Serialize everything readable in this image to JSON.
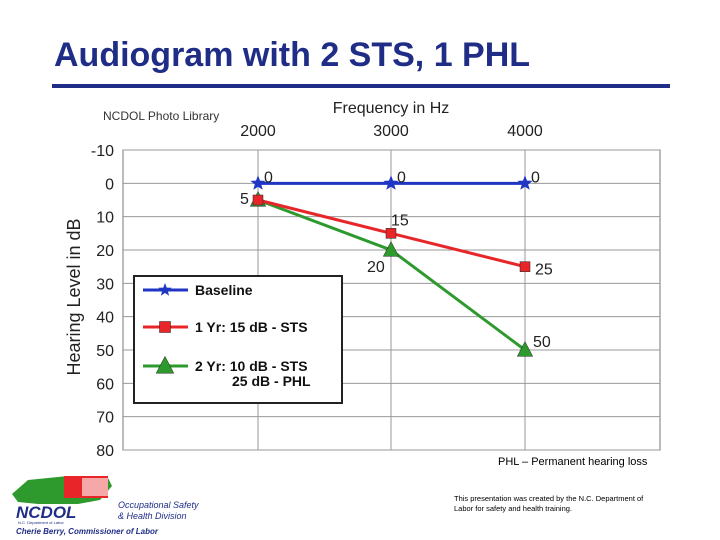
{
  "slide": {
    "title": "Audiogram with 2 STS, 1 PHL",
    "phl_note": "PHL – Permanent hearing loss",
    "footer_note": "This presentation was created by the N.C. Department of Labor for safety and health training.",
    "photo_credit": "NCDOL Photo Library",
    "logo": {
      "name": "NCDOL",
      "subtitle": "N.C. Department of Labor",
      "division_line1": "Occupational Safety",
      "division_line2": "& Health Division",
      "commissioner": "Cherie Berry, Commissioner of Labor"
    },
    "colors": {
      "title": "#1f2d86",
      "baseline": "#1f35c4",
      "year1": "#e8262a",
      "year2": "#2e9a2e"
    }
  },
  "chart_data": {
    "type": "line",
    "xlabel": "Frequency in Hz",
    "ylabel": "Hearing Level in dB",
    "categories": [
      "2000",
      "3000",
      "4000"
    ],
    "ylim": [
      -10,
      80
    ],
    "y_ticks": [
      "-10",
      "0",
      "10",
      "20",
      "30",
      "40",
      "50",
      "60",
      "70",
      "80"
    ],
    "y_inverted": true,
    "grid": true,
    "legend_placement": "bottom-left",
    "series": [
      {
        "name": "Baseline",
        "marker": "star",
        "color": "#1f35c4",
        "values": [
          0,
          0,
          0
        ],
        "labels": [
          "0",
          "0",
          "0"
        ]
      },
      {
        "name": "1 Yr: 15 dB - STS",
        "marker": "square",
        "color": "#e8262a",
        "values": [
          5,
          15,
          25
        ],
        "labels": [
          "5",
          "15",
          "25"
        ]
      },
      {
        "name": "2 Yr: 10 dB - STS",
        "name_line2": "25 dB - PHL",
        "marker": "triangle",
        "color": "#2e9a2e",
        "values": [
          5,
          20,
          50
        ],
        "labels": [
          "",
          "20",
          "50"
        ]
      }
    ]
  }
}
